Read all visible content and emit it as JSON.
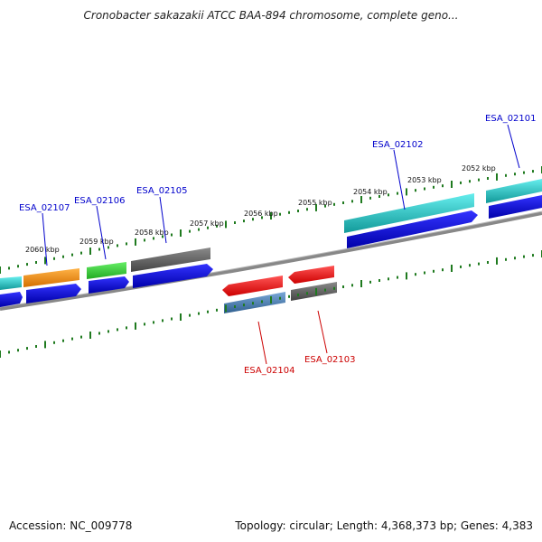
{
  "title": "Cronobacter sakazakii ATCC BAA-894 chromosome, complete geno...",
  "footer": {
    "accession": "Accession: NC_009778",
    "summary": "Topology: circular; Length: 4,368,373 bp; Genes: 4,383"
  },
  "colors": {
    "background": "#ffffff",
    "tick": "#1f7a1f",
    "backbone": "#888888",
    "forward_label": "#0000cc",
    "reverse_label": "#cc0000",
    "cds": "#0000ee",
    "gene_orange": "#f08c00",
    "gene_green": "#33cc33",
    "gene_gray": "#666666",
    "gene_cyan": "#22cccc",
    "gene_red": "#ee1111",
    "gene_steelblue": "#4682b4"
  },
  "scale_labels": [
    {
      "text": "2060 kbp"
    },
    {
      "text": "2059 kbp"
    },
    {
      "text": "2058 kbp"
    },
    {
      "text": "2057 kbp"
    },
    {
      "text": "2056 kbp"
    },
    {
      "text": "2055 kbp"
    },
    {
      "text": "2054 kbp"
    },
    {
      "text": "2053 kbp"
    },
    {
      "text": "2052 kbp"
    }
  ],
  "gene_labels": [
    {
      "text": "ESA_02107",
      "strand": "forward"
    },
    {
      "text": "ESA_02106",
      "strand": "forward"
    },
    {
      "text": "ESA_02105",
      "strand": "forward"
    },
    {
      "text": "ESA_02102",
      "strand": "forward"
    },
    {
      "text": "ESA_02101",
      "strand": "forward"
    },
    {
      "text": "ESA_02104",
      "strand": "reverse"
    },
    {
      "text": "ESA_02103",
      "strand": "reverse"
    }
  ]
}
